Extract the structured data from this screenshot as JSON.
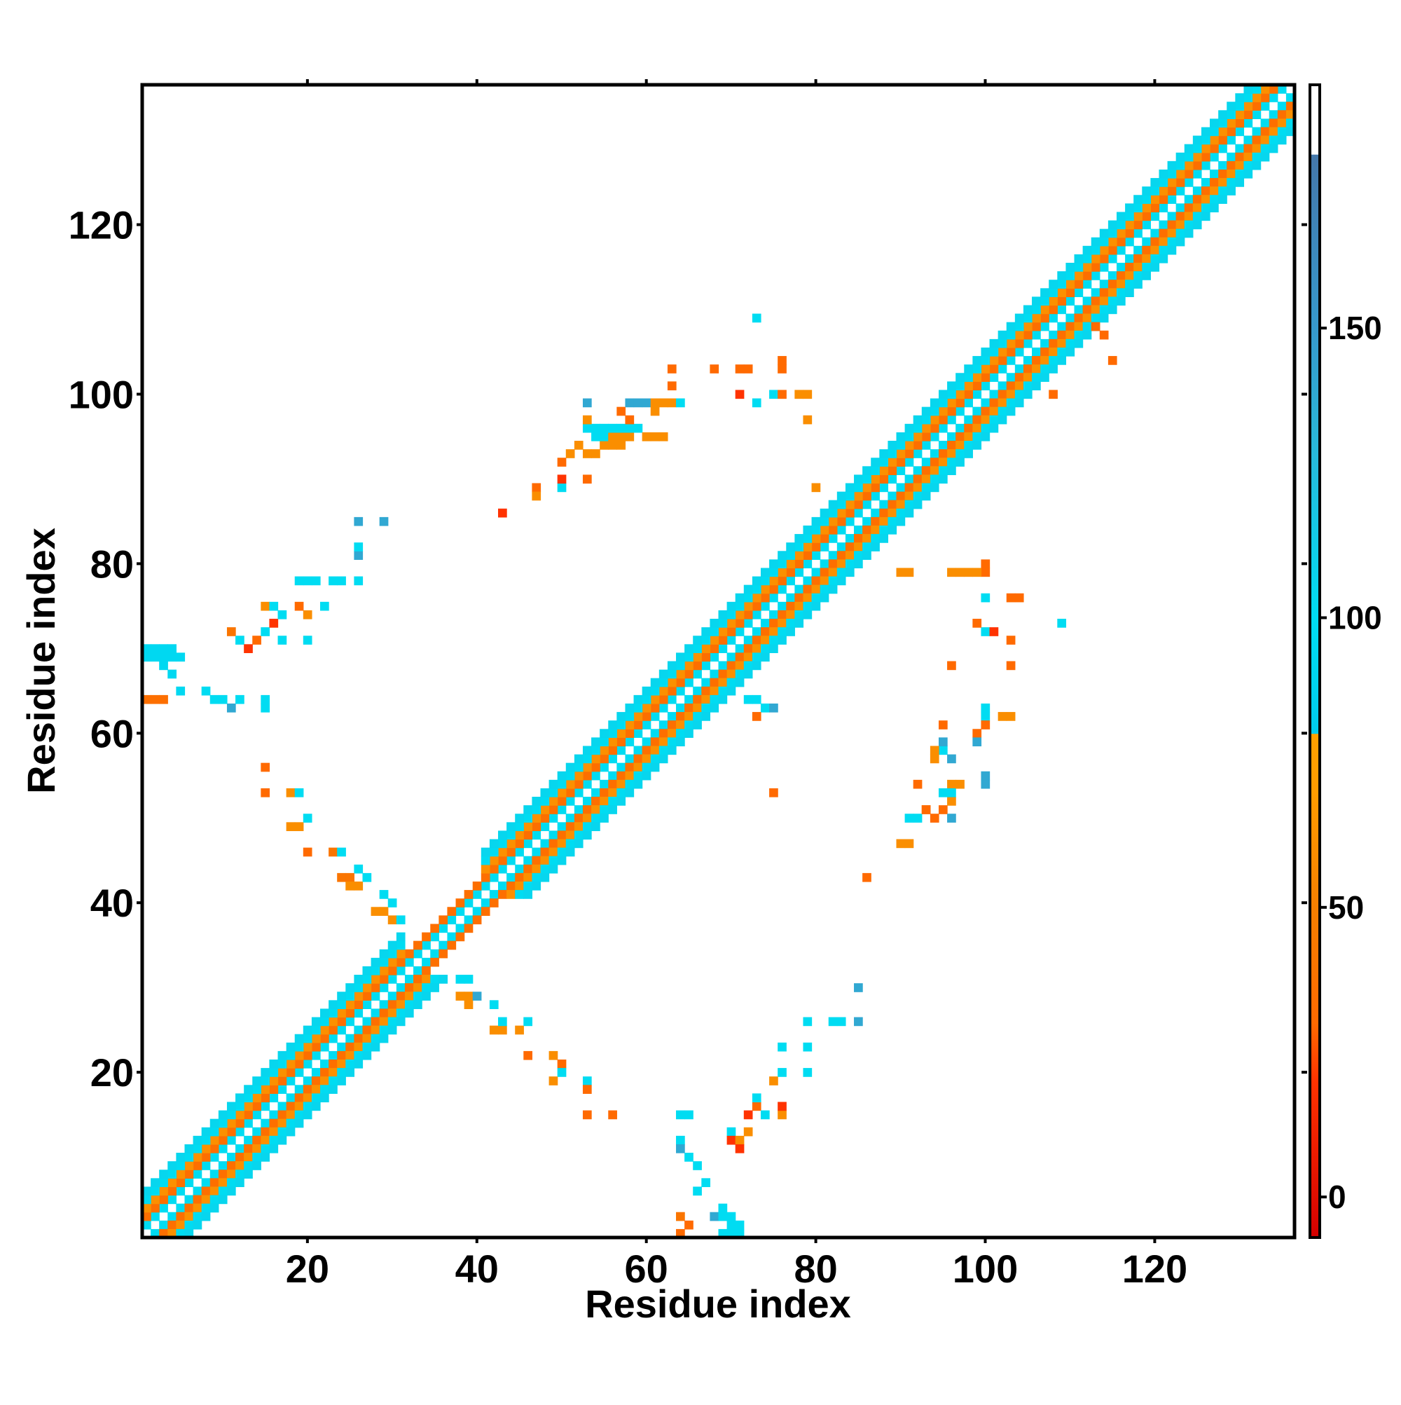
{
  "chart_data": {
    "type": "heatmap",
    "title": "",
    "xlabel": "Residue index",
    "ylabel": "Residue index",
    "xlim": [
      1,
      136
    ],
    "ylim": [
      1,
      136
    ],
    "x_ticks": [
      20,
      40,
      60,
      80,
      100,
      120
    ],
    "y_ticks": [
      20,
      40,
      60,
      80,
      100,
      120
    ],
    "grid": false,
    "legend": "colorbar-right",
    "colorbar": {
      "ticks": [
        0,
        50,
        100,
        150
      ],
      "range": [
        -7,
        192
      ],
      "stops": [
        {
          "value": -7,
          "color": "#d40000"
        },
        {
          "value": 20,
          "color": "#ff3300"
        },
        {
          "value": 30,
          "color": "#ff6a00"
        },
        {
          "value": 50,
          "color": "#f57f00"
        },
        {
          "value": 70,
          "color": "#ff9c00"
        },
        {
          "value": 79.9,
          "color": "#ffa000"
        },
        {
          "value": 80,
          "color": "#00ccee"
        },
        {
          "value": 100,
          "color": "#00dcf2"
        },
        {
          "value": 130,
          "color": "#2ab7d8"
        },
        {
          "value": 150,
          "color": "#3799cc"
        },
        {
          "value": 179.9,
          "color": "#4477aa"
        },
        {
          "value": 180,
          "color": "#ffffff"
        },
        {
          "value": 192,
          "color": "#ffffff"
        }
      ]
    },
    "diagonal_bands": [
      {
        "offset": 1,
        "value": 100
      },
      {
        "offset": 2,
        "value": 35
      },
      {
        "offset": 3,
        "value": 62
      },
      {
        "offset": 4,
        "value": 100
      },
      {
        "offset": 5,
        "value": 105
      }
    ],
    "diagonal_band_skip": {
      "from": 32,
      "to": 40,
      "max_offset": 2
    },
    "offdiagonal_contacts": [
      [
        1,
        69,
        95
      ],
      [
        2,
        69,
        95
      ],
      [
        3,
        69,
        95
      ],
      [
        4,
        69,
        95
      ],
      [
        5,
        69,
        95
      ],
      [
        1,
        70,
        95
      ],
      [
        2,
        70,
        95
      ],
      [
        3,
        70,
        95
      ],
      [
        4,
        70,
        95
      ],
      [
        3,
        68,
        95
      ],
      [
        4,
        67,
        95
      ],
      [
        5,
        65,
        95
      ],
      [
        1,
        64,
        35
      ],
      [
        2,
        64,
        35
      ],
      [
        3,
        64,
        35
      ],
      [
        8,
        65,
        100
      ],
      [
        9,
        64,
        100
      ],
      [
        10,
        64,
        100
      ],
      [
        11,
        63,
        140
      ],
      [
        12,
        64,
        100
      ],
      [
        15,
        64,
        100
      ],
      [
        15,
        63,
        100
      ],
      [
        11,
        72,
        40
      ],
      [
        12,
        71,
        100
      ],
      [
        13,
        70,
        20
      ],
      [
        14,
        71,
        30
      ],
      [
        15,
        72,
        100
      ],
      [
        16,
        73,
        20
      ],
      [
        17,
        71,
        100
      ],
      [
        15,
        75,
        60
      ],
      [
        16,
        75,
        100
      ],
      [
        17,
        74,
        100
      ],
      [
        19,
        75,
        30
      ],
      [
        20,
        74,
        60
      ],
      [
        20,
        71,
        100
      ],
      [
        22,
        75,
        100
      ],
      [
        19,
        78,
        100
      ],
      [
        20,
        78,
        100
      ],
      [
        21,
        78,
        100
      ],
      [
        23,
        78,
        100
      ],
      [
        24,
        78,
        100
      ],
      [
        26,
        78,
        100
      ],
      [
        26,
        81,
        140
      ],
      [
        26,
        82,
        100
      ],
      [
        26,
        85,
        140
      ],
      [
        29,
        85,
        140
      ],
      [
        15,
        56,
        30
      ],
      [
        15,
        53,
        30
      ],
      [
        18,
        53,
        60
      ],
      [
        19,
        53,
        100
      ],
      [
        18,
        49,
        60
      ],
      [
        19,
        49,
        60
      ],
      [
        20,
        50,
        100
      ],
      [
        20,
        46,
        30
      ],
      [
        23,
        46,
        40
      ],
      [
        24,
        46,
        100
      ],
      [
        24,
        43,
        40
      ],
      [
        25,
        43,
        40
      ],
      [
        25,
        42,
        60
      ],
      [
        26,
        42,
        60
      ],
      [
        26,
        44,
        100
      ],
      [
        27,
        43,
        100
      ],
      [
        28,
        39,
        60
      ],
      [
        29,
        39,
        60
      ],
      [
        29,
        41,
        100
      ],
      [
        30,
        40,
        100
      ],
      [
        30,
        38,
        60
      ],
      [
        31,
        38,
        100
      ],
      [
        38,
        31,
        100
      ],
      [
        39,
        31,
        100
      ],
      [
        38,
        29,
        60
      ],
      [
        39,
        29,
        60
      ],
      [
        39,
        28,
        60
      ],
      [
        40,
        29,
        140
      ],
      [
        42,
        28,
        100
      ],
      [
        42,
        25,
        60
      ],
      [
        43,
        25,
        60
      ],
      [
        43,
        26,
        100
      ],
      [
        45,
        25,
        60
      ],
      [
        46,
        26,
        100
      ],
      [
        46,
        22,
        30
      ],
      [
        49,
        22,
        60
      ],
      [
        50,
        21,
        30
      ],
      [
        49,
        19,
        60
      ],
      [
        50,
        20,
        100
      ],
      [
        53,
        19,
        100
      ],
      [
        53,
        18,
        30
      ],
      [
        53,
        15,
        30
      ],
      [
        56,
        15,
        30
      ],
      [
        64,
        15,
        100
      ],
      [
        65,
        15,
        100
      ],
      [
        64,
        12,
        100
      ],
      [
        64,
        11,
        140
      ],
      [
        65,
        10,
        100
      ],
      [
        66,
        9,
        100
      ],
      [
        66,
        6,
        100
      ],
      [
        67,
        7,
        100
      ],
      [
        64,
        3,
        40
      ],
      [
        65,
        2,
        30
      ],
      [
        64,
        1,
        30
      ],
      [
        68,
        3,
        140
      ],
      [
        69,
        3,
        100
      ],
      [
        70,
        3,
        100
      ],
      [
        69,
        4,
        100
      ],
      [
        70,
        2,
        100
      ],
      [
        71,
        2,
        100
      ],
      [
        70,
        1,
        100
      ],
      [
        69,
        1,
        100
      ],
      [
        71,
        1,
        100
      ],
      [
        70,
        13,
        100
      ],
      [
        70,
        12,
        20
      ],
      [
        71,
        12,
        60
      ],
      [
        71,
        11,
        20
      ],
      [
        72,
        13,
        60
      ],
      [
        72,
        15,
        20
      ],
      [
        73,
        16,
        30
      ],
      [
        73,
        17,
        100
      ],
      [
        74,
        15,
        100
      ],
      [
        76,
        15,
        60
      ],
      [
        76,
        16,
        20
      ],
      [
        75,
        19,
        60
      ],
      [
        76,
        20,
        100
      ],
      [
        76,
        23,
        100
      ],
      [
        79,
        23,
        100
      ],
      [
        79,
        20,
        100
      ],
      [
        79,
        26,
        100
      ],
      [
        82,
        26,
        100
      ],
      [
        83,
        26,
        100
      ],
      [
        85,
        26,
        140
      ],
      [
        85,
        30,
        140
      ],
      [
        75,
        53,
        30
      ],
      [
        73,
        64,
        100
      ],
      [
        74,
        63,
        100
      ],
      [
        75,
        63,
        140
      ],
      [
        72,
        64,
        100
      ],
      [
        73,
        62,
        30
      ],
      [
        86,
        43,
        30
      ],
      [
        90,
        47,
        60
      ],
      [
        91,
        47,
        60
      ],
      [
        91,
        50,
        100
      ],
      [
        92,
        50,
        100
      ],
      [
        93,
        51,
        60
      ],
      [
        92,
        54,
        30
      ],
      [
        93,
        51,
        30
      ],
      [
        94,
        50,
        30
      ],
      [
        95,
        51,
        30
      ],
      [
        96,
        50,
        140
      ],
      [
        96,
        52,
        60
      ],
      [
        96,
        54,
        60
      ],
      [
        95,
        53,
        100
      ],
      [
        96,
        53,
        100
      ],
      [
        97,
        54,
        60
      ],
      [
        94,
        57,
        60
      ],
      [
        95,
        58,
        100
      ],
      [
        96,
        57,
        140
      ],
      [
        95,
        61,
        30
      ],
      [
        95,
        59,
        140
      ],
      [
        94,
        58,
        60
      ],
      [
        100,
        54,
        140
      ],
      [
        99,
        60,
        30
      ],
      [
        100,
        62,
        100
      ],
      [
        99,
        59,
        140
      ],
      [
        100,
        63,
        100
      ],
      [
        100,
        61,
        30
      ],
      [
        100,
        55,
        140
      ],
      [
        102,
        62,
        60
      ],
      [
        103,
        62,
        60
      ],
      [
        103,
        68,
        30
      ],
      [
        103,
        71,
        30
      ],
      [
        103,
        76,
        30
      ],
      [
        104,
        76,
        30
      ],
      [
        100,
        76,
        100
      ],
      [
        100,
        80,
        30
      ],
      [
        100,
        79,
        30
      ],
      [
        99,
        79,
        60
      ],
      [
        98,
        79,
        60
      ],
      [
        97,
        79,
        60
      ],
      [
        100,
        72,
        100
      ],
      [
        101,
        72,
        20
      ],
      [
        109,
        73,
        100
      ],
      [
        99,
        73,
        30
      ],
      [
        96,
        68,
        30
      ],
      [
        90,
        79,
        60
      ],
      [
        91,
        79,
        60
      ],
      [
        96,
        79,
        60
      ],
      [
        43,
        86,
        20
      ],
      [
        47,
        89,
        30
      ],
      [
        47,
        88,
        60
      ],
      [
        50,
        89,
        100
      ],
      [
        50,
        90,
        20
      ],
      [
        53,
        90,
        30
      ],
      [
        50,
        92,
        30
      ],
      [
        51,
        93,
        60
      ],
      [
        52,
        94,
        60
      ],
      [
        53,
        93,
        60
      ],
      [
        54,
        93,
        60
      ],
      [
        55,
        94,
        60
      ],
      [
        56,
        94,
        60
      ],
      [
        57,
        94,
        60
      ],
      [
        54,
        95,
        100
      ],
      [
        55,
        95,
        100
      ],
      [
        56,
        95,
        60
      ],
      [
        57,
        95,
        60
      ],
      [
        58,
        95,
        60
      ],
      [
        53,
        96,
        100
      ],
      [
        54,
        96,
        100
      ],
      [
        55,
        96,
        100
      ],
      [
        56,
        96,
        100
      ],
      [
        57,
        96,
        100
      ],
      [
        58,
        96,
        100
      ],
      [
        59,
        96,
        100
      ],
      [
        60,
        95,
        60
      ],
      [
        61,
        95,
        60
      ],
      [
        62,
        95,
        60
      ],
      [
        57,
        98,
        30
      ],
      [
        58,
        99,
        140
      ],
      [
        59,
        99,
        140
      ],
      [
        60,
        99,
        140
      ],
      [
        61,
        99,
        60
      ],
      [
        62,
        99,
        60
      ],
      [
        63,
        99,
        60
      ],
      [
        64,
        99,
        100
      ],
      [
        53,
        99,
        140
      ],
      [
        53,
        97,
        60
      ],
      [
        58,
        97,
        30
      ],
      [
        61,
        98,
        60
      ],
      [
        63,
        101,
        30
      ],
      [
        63,
        103,
        30
      ],
      [
        68,
        103,
        30
      ],
      [
        71,
        103,
        30
      ],
      [
        72,
        103,
        30
      ],
      [
        71,
        100,
        20
      ],
      [
        73,
        99,
        100
      ],
      [
        75,
        100,
        100
      ],
      [
        76,
        100,
        30
      ],
      [
        78,
        100,
        60
      ],
      [
        79,
        100,
        60
      ],
      [
        76,
        103,
        30
      ],
      [
        76,
        104,
        30
      ],
      [
        79,
        97,
        60
      ],
      [
        80,
        89,
        60
      ],
      [
        73,
        109,
        100
      ],
      [
        115,
        104,
        30
      ],
      [
        113,
        108,
        30
      ],
      [
        114,
        107,
        30
      ],
      [
        108,
        100,
        30
      ]
    ]
  }
}
